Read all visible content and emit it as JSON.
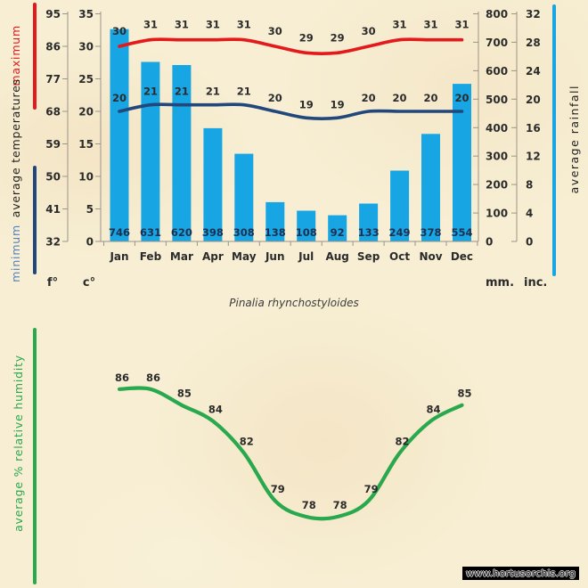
{
  "watermark": "www.hortusorchis.org",
  "colors": {
    "background": "#f7eed3",
    "rainfall_bar": "#18a5e3",
    "max_temp_line": "#e3191c",
    "min_temp_line": "#21477d",
    "min_label_text": "#5381c1",
    "humidity_line": "#2aa84e",
    "axis": "#9a948a",
    "text": "#2b2b2b",
    "rain_value_text": "#1d3050"
  },
  "temperature_chart": {
    "side_labels": {
      "maximum": "maximum",
      "average": "average temperatures",
      "minimum": "minimum"
    },
    "rainfall_side_label": "average rainfall",
    "units": {
      "fahrenheit": "f°",
      "celsius": "c°",
      "millimeters": "mm.",
      "inches": "inc."
    },
    "f_scale": [
      95,
      86,
      77,
      68,
      59,
      50,
      41,
      32
    ],
    "c_scale": [
      35,
      30,
      25,
      20,
      15,
      10,
      5,
      0
    ],
    "mm_scale": [
      800,
      700,
      600,
      500,
      400,
      300,
      200,
      100,
      0
    ],
    "inc_scale": [
      32,
      28,
      24,
      20,
      16,
      12,
      8,
      4,
      0
    ]
  },
  "humidity_chart": {
    "side_label": "average % relative humidity"
  },
  "chart_data": [
    {
      "type": "bar+line",
      "categories": [
        "Jan",
        "Feb",
        "Mar",
        "Apr",
        "May",
        "Jun",
        "Jul",
        "Aug",
        "Sep",
        "Oct",
        "Nov",
        "Dec"
      ],
      "series": [
        {
          "name": "maximum temperature",
          "type": "line",
          "unit": "c°",
          "values": [
            30,
            31,
            31,
            31,
            31,
            30,
            29,
            29,
            30,
            31,
            31,
            31
          ]
        },
        {
          "name": "minimum temperature",
          "type": "line",
          "unit": "c°",
          "values": [
            20,
            21,
            21,
            21,
            21,
            20,
            19,
            19,
            20,
            20,
            20,
            20
          ]
        },
        {
          "name": "average rainfall",
          "type": "bar",
          "unit": "mm",
          "values": [
            746,
            631,
            620,
            398,
            308,
            138,
            108,
            92,
            133,
            249,
            378,
            554
          ]
        }
      ],
      "temp_axis_range_c": [
        0,
        35
      ],
      "temp_axis_range_f": [
        32,
        95
      ],
      "rain_axis_range_mm": [
        0,
        800
      ],
      "rain_axis_range_inc": [
        0,
        32
      ],
      "grid": false,
      "legend_position": "rotated side labels"
    },
    {
      "type": "line",
      "title": "Pinalia rhynchostyloides",
      "categories": [
        "Jan",
        "Feb",
        "Mar",
        "Apr",
        "May",
        "Jun",
        "Jul",
        "Aug",
        "Sep",
        "Oct",
        "Nov",
        "Dec"
      ],
      "series": [
        {
          "name": "average % relative humidity",
          "values": [
            86,
            86,
            85,
            84,
            82,
            79,
            78,
            78,
            79,
            82,
            84,
            85
          ]
        }
      ],
      "grid": false
    }
  ]
}
